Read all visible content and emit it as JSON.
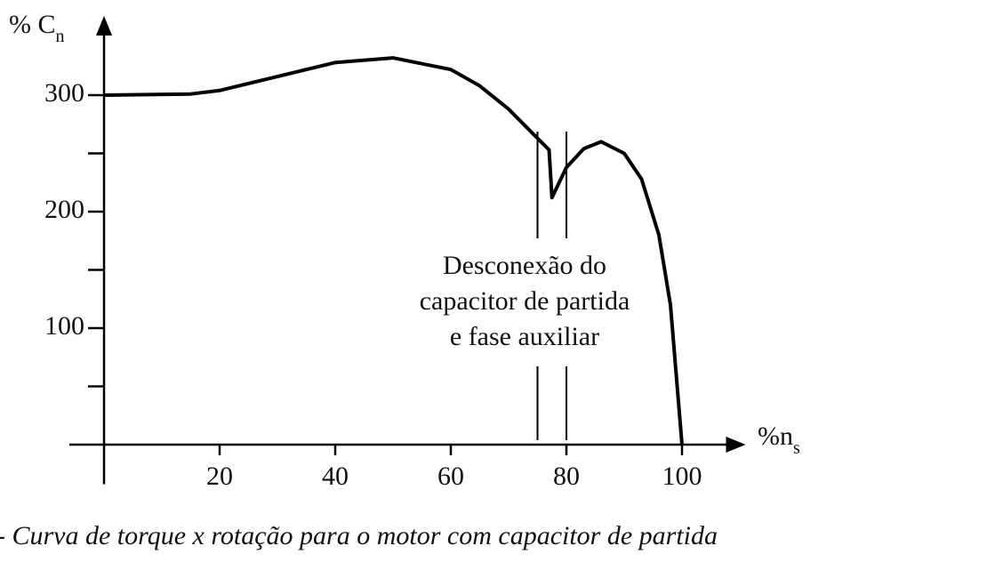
{
  "chart_data": {
    "type": "line",
    "y_label": {
      "main": "% C",
      "sub": "n"
    },
    "x_label": {
      "main": "%n",
      "sub": "s"
    },
    "annotation": [
      "Desconexão do",
      "capacitor de partida",
      "e fase auxiliar"
    ],
    "caption": "- Curva de torque x rotação para o motor com capacitor de partida",
    "x": [
      0,
      15,
      20,
      30,
      40,
      50,
      60,
      65,
      70,
      74,
      77,
      77.5,
      80,
      83,
      86,
      90,
      93,
      96,
      98,
      100
    ],
    "series": [
      {
        "color": "#000000",
        "values": [
          300,
          301,
          304,
          316,
          328,
          332,
          322,
          308,
          288,
          268,
          253,
          212,
          238,
          254,
          260,
          250,
          228,
          180,
          120,
          0
        ]
      }
    ],
    "marker_lines": [
      75,
      80
    ],
    "xlim": [
      -6,
      111
    ],
    "ylim": [
      -34,
      368
    ],
    "xticks": [
      20,
      40,
      60,
      80,
      100
    ],
    "yticks": [
      100,
      200,
      300
    ],
    "y_minor_ticks": [
      50,
      150,
      250
    ]
  }
}
